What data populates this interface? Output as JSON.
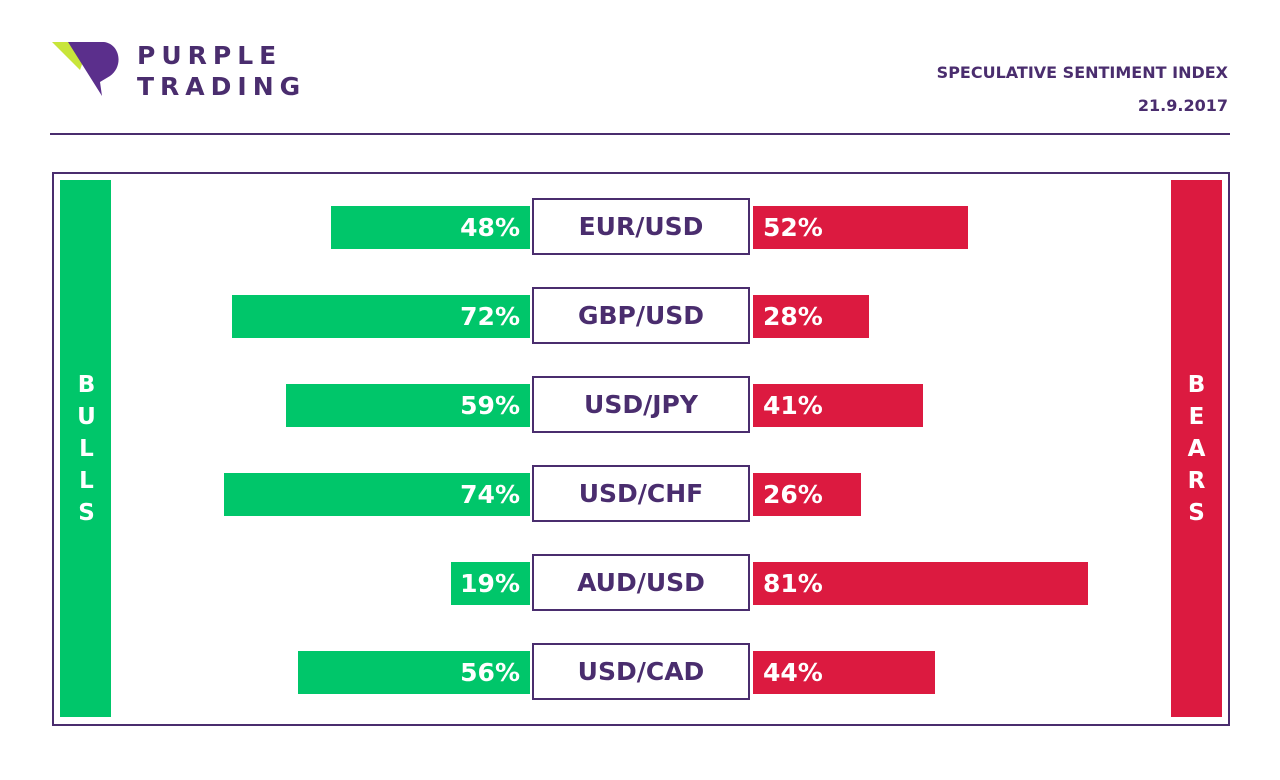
{
  "brand": {
    "line1": "PURPLE",
    "line2": "TRADING",
    "colors": {
      "purple": "#4a2d6e",
      "lime": "#c8e53a"
    }
  },
  "report": {
    "title": "SPECULATIVE SENTIMENT INDEX",
    "date": "21.9.2017"
  },
  "sides": {
    "bulls": {
      "label": "BULLS",
      "color": "#00c66a"
    },
    "bears": {
      "label": "BEARS",
      "color": "#dc1a40"
    }
  },
  "chart_data": {
    "type": "bar",
    "categories": [
      "EUR/USD",
      "GBP/USD",
      "USD/JPY",
      "USD/CHF",
      "AUD/USD",
      "USD/CAD"
    ],
    "series": [
      {
        "name": "BULLS",
        "values": [
          48,
          72,
          59,
          74,
          19,
          56
        ],
        "labels": [
          "48%",
          "72%",
          "59%",
          "74%",
          "19%",
          "56%"
        ]
      },
      {
        "name": "BEARS",
        "values": [
          52,
          28,
          41,
          26,
          81,
          44
        ],
        "labels": [
          "52%",
          "28%",
          "41%",
          "26%",
          "81%",
          "44%"
        ]
      }
    ]
  }
}
